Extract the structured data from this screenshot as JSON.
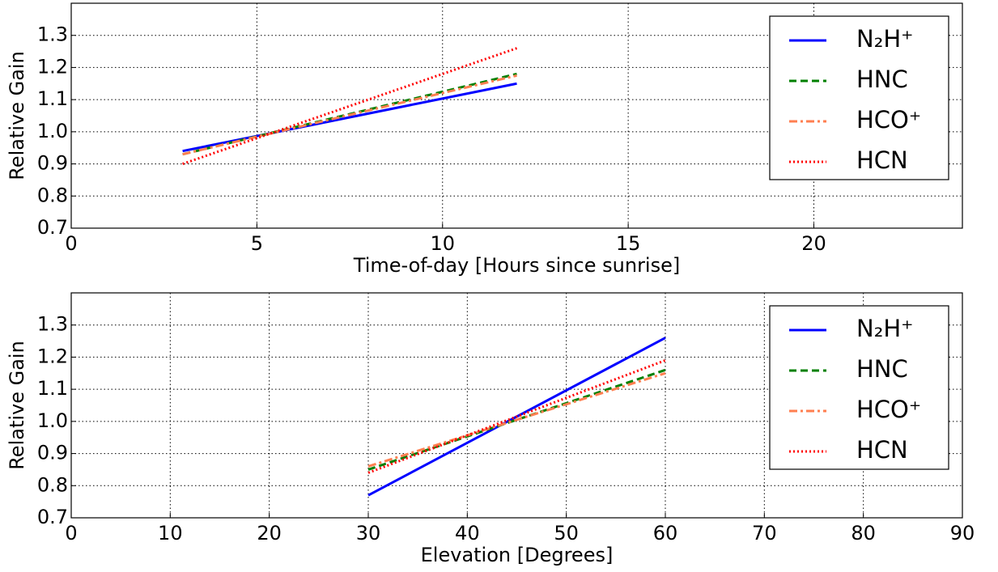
{
  "chart_data": [
    {
      "type": "line",
      "xlabel": "Time-of-day [Hours since sunrise]",
      "ylabel": "Relative Gain",
      "x": [
        3,
        12
      ],
      "series": [
        {
          "name": "N₂H⁺",
          "color": "#0000ff",
          "linestyle": "solid",
          "values": [
            0.94,
            1.15
          ]
        },
        {
          "name": "HNC",
          "color": "#008000",
          "linestyle": "dashed",
          "values": [
            0.93,
            1.18
          ]
        },
        {
          "name": "HCO⁺",
          "color": "#ff7f50",
          "linestyle": "dashdot",
          "values": [
            0.93,
            1.175
          ]
        },
        {
          "name": "HCN",
          "color": "#ff0000",
          "linestyle": "dotted",
          "values": [
            0.9,
            1.26
          ]
        }
      ],
      "xlim": [
        0,
        24
      ],
      "xticks": [
        0,
        5,
        10,
        15,
        20
      ],
      "ylim": [
        0.7,
        1.4
      ],
      "yticks": [
        0.7,
        0.8,
        0.9,
        {
          "value": 1.0,
          "label": "1.0"
        },
        1.1,
        1.2,
        1.3
      ],
      "grid": true,
      "legend": "upper right"
    },
    {
      "type": "line",
      "xlabel": "Elevation [Degrees]",
      "ylabel": "Relative Gain",
      "x": [
        30,
        60
      ],
      "series": [
        {
          "name": "N₂H⁺",
          "color": "#0000ff",
          "linestyle": "solid",
          "values": [
            0.77,
            1.26
          ]
        },
        {
          "name": "HNC",
          "color": "#008000",
          "linestyle": "dashed",
          "values": [
            0.85,
            1.16
          ]
        },
        {
          "name": "HCO⁺",
          "color": "#ff7f50",
          "linestyle": "dashdot",
          "values": [
            0.86,
            1.15
          ]
        },
        {
          "name": "HCN",
          "color": "#ff0000",
          "linestyle": "dotted",
          "values": [
            0.84,
            1.19
          ]
        }
      ],
      "xlim": [
        0,
        90
      ],
      "xticks": [
        0,
        10,
        20,
        30,
        40,
        50,
        60,
        70,
        80,
        90
      ],
      "ylim": [
        0.7,
        1.4
      ],
      "yticks": [
        0.7,
        0.8,
        0.9,
        {
          "value": 1.0,
          "label": "1.0"
        },
        1.1,
        1.2,
        1.3
      ],
      "grid": true,
      "legend": "upper right"
    }
  ]
}
